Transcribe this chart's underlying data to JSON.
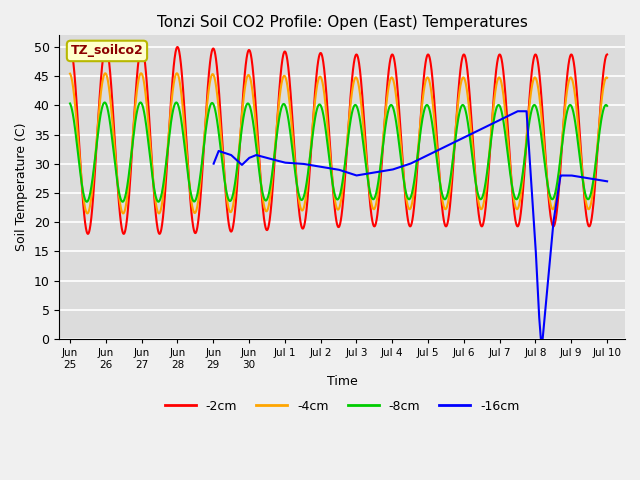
{
  "title": "Tonzi Soil CO2 Profile: Open (East) Temperatures",
  "xlabel": "Time",
  "ylabel": "Soil Temperature (C)",
  "legend_label": "TZ_soilco2",
  "series_labels": [
    "-2cm",
    "-4cm",
    "-8cm",
    "-16cm"
  ],
  "series_colors": [
    "#ff0000",
    "#ffa500",
    "#00cc00",
    "#0000ff"
  ],
  "ylim": [
    0,
    52
  ],
  "yticks": [
    0,
    5,
    10,
    15,
    20,
    25,
    30,
    35,
    40,
    45,
    50
  ],
  "tick_positions": [
    0,
    1,
    2,
    3,
    4,
    5,
    6,
    7,
    8,
    9,
    10,
    11,
    12,
    13,
    14,
    15
  ],
  "tick_labels": [
    "Jun\n25",
    "Jun\n26",
    "Jun\n27",
    "Jun\n28",
    "Jun\n29",
    "Jun\n30",
    "Jul 1",
    "Jul 2",
    "Jul 3",
    "Jul 4",
    "Jul 5",
    "Jul 6",
    "Jul 7",
    "Jul 8",
    "Jul 9",
    "Jul 10"
  ],
  "plot_bg_color": "#dcdcdc",
  "fig_bg_color": "#f0f0f0"
}
